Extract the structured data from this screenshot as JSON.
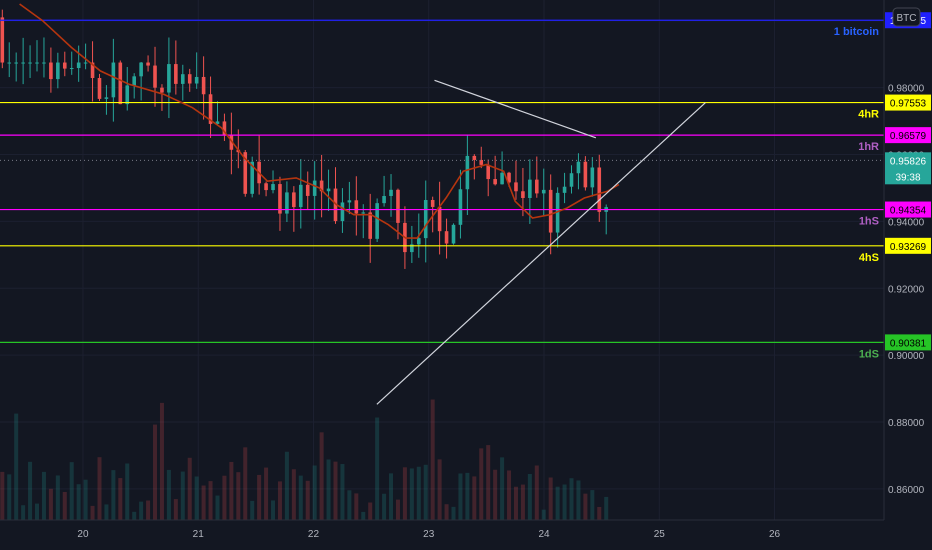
{
  "toolbar": {
    "currency_label": "BTC"
  },
  "chart_data": {
    "type": "candlestick",
    "title": "",
    "unit": "BTC",
    "x_ticks": [
      "20",
      "21",
      "22",
      "23",
      "24",
      "25",
      "26"
    ],
    "y_ticks": [
      "1",
      "0.98000",
      "0.96000",
      "0.94000",
      "0.92000",
      "0.90000",
      "0.88000",
      "0.86000"
    ],
    "y_range": [
      0.8507,
      1.0062
    ],
    "x_range_days": [
      19.28,
      26.95
    ],
    "horizontal_levels": [
      {
        "label": "1 bitcoin",
        "value": 1.00015,
        "value_text": "1.00015",
        "color": "#2020ff",
        "label_color": "#2962ff"
      },
      {
        "label": "4hR",
        "value": 0.97553,
        "value_text": "0.97553",
        "color": "#ffff00",
        "label_color": "#ffff00"
      },
      {
        "label": "1hR",
        "value": 0.96579,
        "value_text": "0.96579",
        "color": "#ff00ff",
        "label_color": "#b05fc4"
      },
      {
        "label": "1hS",
        "value": 0.94354,
        "value_text": "0.94354",
        "color": "#ff00ff",
        "label_color": "#b05fc4"
      },
      {
        "label": "4hS",
        "value": 0.93269,
        "value_text": "0.93269",
        "color": "#ffff00",
        "label_color": "#ffff00"
      },
      {
        "label": "1dS",
        "value": 0.90381,
        "value_text": "0.90381",
        "color": "#26c426",
        "label_color": "#4caf50"
      }
    ],
    "last_price": {
      "value": 0.95826,
      "value_text": "0.95826",
      "countdown": "39:38",
      "color": "#26a69a"
    },
    "trendlines": [
      {
        "name": "ascending-support",
        "points": [
          [
            22.55,
            0.8853
          ],
          [
            25.4,
            0.9755
          ]
        ]
      },
      {
        "name": "descending-resistance",
        "points": [
          [
            23.05,
            0.9822
          ],
          [
            24.45,
            0.965
          ]
        ]
      }
    ],
    "moving_average": {
      "color": "#b5350f",
      "points": [
        [
          19.45,
          1.005
        ],
        [
          19.65,
          1.0
        ],
        [
          19.9,
          0.992
        ],
        [
          20.15,
          0.985
        ],
        [
          20.4,
          0.981
        ],
        [
          20.7,
          0.978
        ],
        [
          20.95,
          0.974
        ],
        [
          21.2,
          0.968
        ],
        [
          21.4,
          0.959
        ],
        [
          21.6,
          0.952
        ],
        [
          21.85,
          0.953
        ],
        [
          22.05,
          0.95
        ],
        [
          22.2,
          0.945
        ],
        [
          22.35,
          0.942
        ],
        [
          22.5,
          0.942
        ],
        [
          22.65,
          0.939
        ],
        [
          22.8,
          0.935
        ],
        [
          22.9,
          0.935
        ],
        [
          23.0,
          0.94
        ],
        [
          23.15,
          0.947
        ],
        [
          23.3,
          0.955
        ],
        [
          23.5,
          0.957
        ],
        [
          23.65,
          0.955
        ],
        [
          23.75,
          0.946
        ],
        [
          23.9,
          0.941
        ],
        [
          24.05,
          0.942
        ],
        [
          24.2,
          0.944
        ],
        [
          24.35,
          0.947
        ],
        [
          24.55,
          0.949
        ],
        [
          24.65,
          0.951
        ]
      ]
    },
    "candles_summary": {
      "period_start": 19.3,
      "period_end": 24.6,
      "low": 0.8853,
      "high": 0.9875
    }
  }
}
